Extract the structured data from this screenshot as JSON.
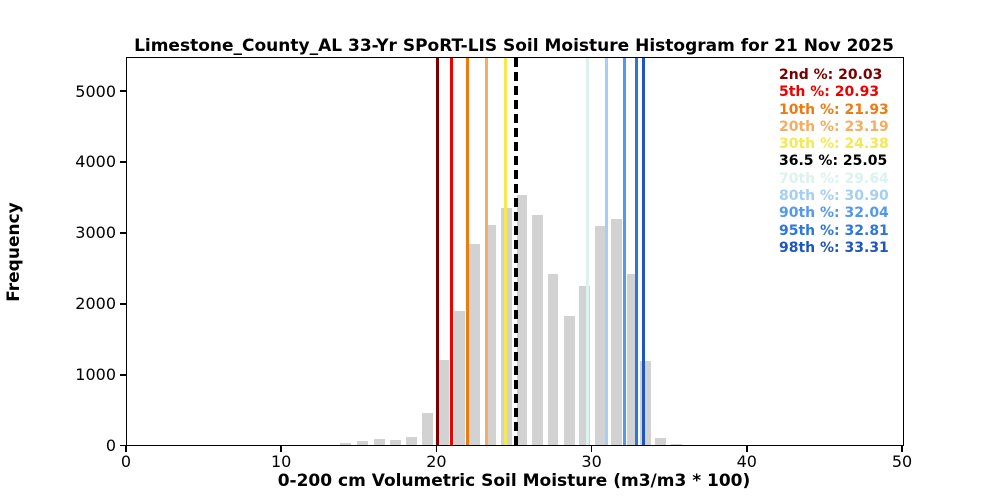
{
  "chart_data": {
    "type": "bar",
    "title": "Limestone_County_AL 33-Yr SPoRT-LIS Soil Moisture Histogram for 21 Nov 2025",
    "xlabel": "0-200 cm Volumetric Soil Moisture (m3/m3 * 100)",
    "ylabel": "Frequency",
    "xlim": [
      0,
      50
    ],
    "ylim": [
      0,
      5460
    ],
    "xticks": [
      "0",
      "10",
      "20",
      "30",
      "40",
      "50"
    ],
    "yticks": [
      "0",
      "1000",
      "2000",
      "3000",
      "4000",
      "5000"
    ],
    "grid": false,
    "legend_position": "upper right",
    "bar_color": "#d2d2d2",
    "bar_render_width_units": 0.7,
    "bins": [
      {
        "center": 14.07,
        "count": 30
      },
      {
        "center": 15.2,
        "count": 50
      },
      {
        "center": 16.26,
        "count": 80
      },
      {
        "center": 17.32,
        "count": 65
      },
      {
        "center": 18.35,
        "count": 110
      },
      {
        "center": 19.38,
        "count": 455
      },
      {
        "center": 20.4,
        "count": 1195
      },
      {
        "center": 21.4,
        "count": 1890
      },
      {
        "center": 22.4,
        "count": 2835
      },
      {
        "center": 23.45,
        "count": 3110
      },
      {
        "center": 24.45,
        "count": 3345
      },
      {
        "center": 25.45,
        "count": 3530
      },
      {
        "center": 26.45,
        "count": 3240
      },
      {
        "center": 27.45,
        "count": 2410
      },
      {
        "center": 28.5,
        "count": 1820
      },
      {
        "center": 29.5,
        "count": 2240
      },
      {
        "center": 30.5,
        "count": 3090
      },
      {
        "center": 31.55,
        "count": 3195
      },
      {
        "center": 32.55,
        "count": 2410
      },
      {
        "center": 33.4,
        "count": 1190
      },
      {
        "center": 34.4,
        "count": 100
      },
      {
        "center": 35.4,
        "count": 20
      }
    ],
    "percentiles": [
      {
        "name": "2nd %",
        "value": 20.03,
        "display": "20.03",
        "color": "#780000",
        "style": "solid"
      },
      {
        "name": "5th %",
        "value": 20.93,
        "display": "20.93",
        "color": "#ee0000",
        "style": "solid"
      },
      {
        "name": "10th %",
        "value": 21.93,
        "display": "21.93",
        "color": "#ee7a10",
        "style": "solid"
      },
      {
        "name": "20th %",
        "value": 23.19,
        "display": "23.19",
        "color": "#f5ad62",
        "style": "solid"
      },
      {
        "name": "30th %",
        "value": 24.38,
        "display": "24.38",
        "color": "#f2ea50",
        "style": "solid"
      },
      {
        "name": "36.5 %",
        "value": 25.05,
        "display": "25.05",
        "color": "#000000",
        "style": "dashed"
      },
      {
        "name": "70th %",
        "value": 29.64,
        "display": "29.64",
        "color": "#dcf2ee",
        "style": "solid"
      },
      {
        "name": "80th %",
        "value": 30.9,
        "display": "30.90",
        "color": "#a4cff4",
        "style": "solid"
      },
      {
        "name": "90th %",
        "value": 32.04,
        "display": "32.04",
        "color": "#5598ea",
        "style": "solid"
      },
      {
        "name": "95th %",
        "value": 32.81,
        "display": "32.81",
        "color": "#2d76dd",
        "style": "solid"
      },
      {
        "name": "98th %",
        "value": 33.31,
        "display": "33.31",
        "color": "#1e57bb",
        "style": "solid"
      }
    ]
  }
}
